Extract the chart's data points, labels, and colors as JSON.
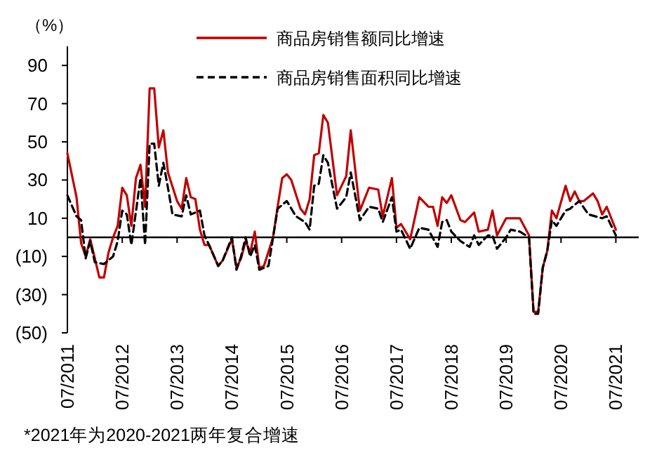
{
  "chart_data": {
    "type": "line",
    "ylabel": "（%）",
    "annotations": [
      "*2021年为2020-2021两年复合增速"
    ],
    "xlim": [
      "2011-07",
      "2021-12"
    ],
    "ylim": [
      -50,
      100
    ],
    "xticks": [
      {
        "value": "2011-07",
        "label": "07/2011"
      },
      {
        "value": "2012-07",
        "label": "07/2012"
      },
      {
        "value": "2013-07",
        "label": "07/2013"
      },
      {
        "value": "2014-07",
        "label": "07/2014"
      },
      {
        "value": "2015-07",
        "label": "07/2015"
      },
      {
        "value": "2016-07",
        "label": "07/2016"
      },
      {
        "value": "2017-07",
        "label": "07/2017"
      },
      {
        "value": "2018-07",
        "label": "07/2018"
      },
      {
        "value": "2019-07",
        "label": "07/2019"
      },
      {
        "value": "2020-07",
        "label": "07/2020"
      },
      {
        "value": "2021-07",
        "label": "07/2021"
      }
    ],
    "yticks": [
      90,
      70,
      50,
      30,
      10,
      {
        "value": -10,
        "label": "(10)"
      },
      {
        "value": -30,
        "label": "(30)"
      },
      {
        "value": -50,
        "label": "(50)"
      }
    ],
    "grid": false,
    "legend": "top right",
    "marker": "none",
    "series": [
      {
        "name": "商品房销售额同比增速",
        "color": "#c00000",
        "line_style": "solid",
        "x": [
          "2011-07",
          "2011-09",
          "2011-10",
          "2011-11",
          "2011-12",
          "2012-02",
          "2012-03",
          "2012-04",
          "2012-05",
          "2012-06",
          "2012-07",
          "2012-08",
          "2012-09",
          "2012-10",
          "2012-11",
          "2012-12",
          "2013-01",
          "2013-02",
          "2013-03",
          "2013-04",
          "2013-05",
          "2013-07",
          "2013-08",
          "2013-09",
          "2013-10",
          "2013-11",
          "2013-12",
          "2014-01",
          "2014-02",
          "2014-04",
          "2014-05",
          "2014-07",
          "2014-08",
          "2014-09",
          "2014-10",
          "2014-11",
          "2014-12",
          "2015-01",
          "2015-02",
          "2015-04",
          "2015-05",
          "2015-06",
          "2015-07",
          "2015-08",
          "2015-10",
          "2015-11",
          "2015-12",
          "2016-01",
          "2016-02",
          "2016-03",
          "2016-04",
          "2016-06",
          "2016-08",
          "2016-09",
          "2016-11",
          "2017-01",
          "2017-03",
          "2017-04",
          "2017-06",
          "2017-07",
          "2017-08",
          "2017-10",
          "2017-12",
          "2018-02",
          "2018-03",
          "2018-04",
          "2018-05",
          "2018-06",
          "2018-07",
          "2018-09",
          "2018-10",
          "2018-12",
          "2019-01",
          "2019-03",
          "2019-04",
          "2019-05",
          "2019-07",
          "2019-10",
          "2019-12",
          "2020-01",
          "2020-02",
          "2020-03",
          "2020-04",
          "2020-05",
          "2020-06",
          "2020-08",
          "2020-09",
          "2020-10",
          "2020-11",
          "2020-12",
          "2021-02",
          "2021-03",
          "2021-04",
          "2021-05",
          "2021-07"
        ],
        "values": [
          44,
          21,
          -3,
          -10,
          -1,
          -21,
          -21,
          -8,
          0,
          6,
          26,
          22,
          6,
          31,
          38,
          16,
          78,
          78,
          47,
          56,
          34,
          19,
          15,
          31,
          21,
          20,
          4,
          -4,
          -4,
          -15,
          -12,
          -1,
          -16,
          -11,
          -2,
          -8,
          3,
          -16,
          -15,
          0,
          16,
          31,
          33,
          30,
          15,
          12,
          20,
          43,
          44,
          64,
          60,
          22,
          32,
          56,
          14,
          26,
          25,
          11,
          31,
          5,
          7,
          -1,
          21,
          16,
          16,
          6,
          21,
          18,
          22,
          9,
          8,
          13,
          3,
          4,
          14,
          1,
          10,
          10,
          1,
          -39,
          -39,
          -16,
          -7,
          14,
          10,
          27,
          19,
          24,
          19,
          19,
          23,
          19,
          12,
          16,
          4
        ]
      },
      {
        "name": "商品房销售面积同比增速",
        "color": "#000000",
        "line_style": "dashed",
        "x": [
          "2011-07",
          "2011-09",
          "2011-10",
          "2011-11",
          "2011-12",
          "2012-01",
          "2012-03",
          "2012-05",
          "2012-06",
          "2012-07",
          "2012-08",
          "2012-09",
          "2012-11",
          "2012-12",
          "2013-01",
          "2013-02",
          "2013-03",
          "2013-04",
          "2013-05",
          "2013-06",
          "2013-08",
          "2013-09",
          "2013-10",
          "2013-12",
          "2014-01",
          "2014-02",
          "2014-04",
          "2014-05",
          "2014-07",
          "2014-08",
          "2014-09",
          "2014-10",
          "2014-11",
          "2014-12",
          "2015-01",
          "2015-03",
          "2015-04",
          "2015-05",
          "2015-07",
          "2015-09",
          "2015-11",
          "2015-12",
          "2016-01",
          "2016-02",
          "2016-03",
          "2016-04",
          "2016-06",
          "2016-08",
          "2016-09",
          "2016-11",
          "2017-01",
          "2017-03",
          "2017-04",
          "2017-06",
          "2017-07",
          "2017-08",
          "2017-10",
          "2017-12",
          "2018-02",
          "2018-04",
          "2018-05",
          "2018-06",
          "2018-07",
          "2018-09",
          "2018-11",
          "2018-12",
          "2019-01",
          "2019-03",
          "2019-04",
          "2019-05",
          "2019-07",
          "2019-08",
          "2019-10",
          "2019-12",
          "2020-01",
          "2020-02",
          "2020-03",
          "2020-04",
          "2020-05",
          "2020-06",
          "2020-08",
          "2020-09",
          "2020-11",
          "2021-01",
          "2021-04",
          "2021-05",
          "2021-07"
        ],
        "values": [
          22,
          11,
          9,
          -11,
          -2,
          -13,
          -14,
          -10,
          -2,
          14,
          12,
          -4,
          31,
          -4,
          49,
          49,
          27,
          39,
          26,
          12,
          11,
          22,
          12,
          14,
          1,
          -4,
          -15,
          -12,
          0,
          -17,
          -10,
          0,
          -10,
          -4,
          -17,
          -15,
          0,
          15,
          19,
          11,
          8,
          4,
          27,
          28,
          43,
          39,
          15,
          21,
          34,
          9,
          16,
          15,
          8,
          21,
          3,
          4,
          -6,
          5,
          4,
          -5,
          8,
          9,
          3,
          -2,
          -5,
          1,
          -4,
          1,
          1,
          -6,
          0,
          4,
          3,
          0,
          -40,
          -40,
          -16,
          -7,
          9,
          6,
          14,
          15,
          19,
          12,
          10,
          11,
          1
        ]
      }
    ]
  }
}
